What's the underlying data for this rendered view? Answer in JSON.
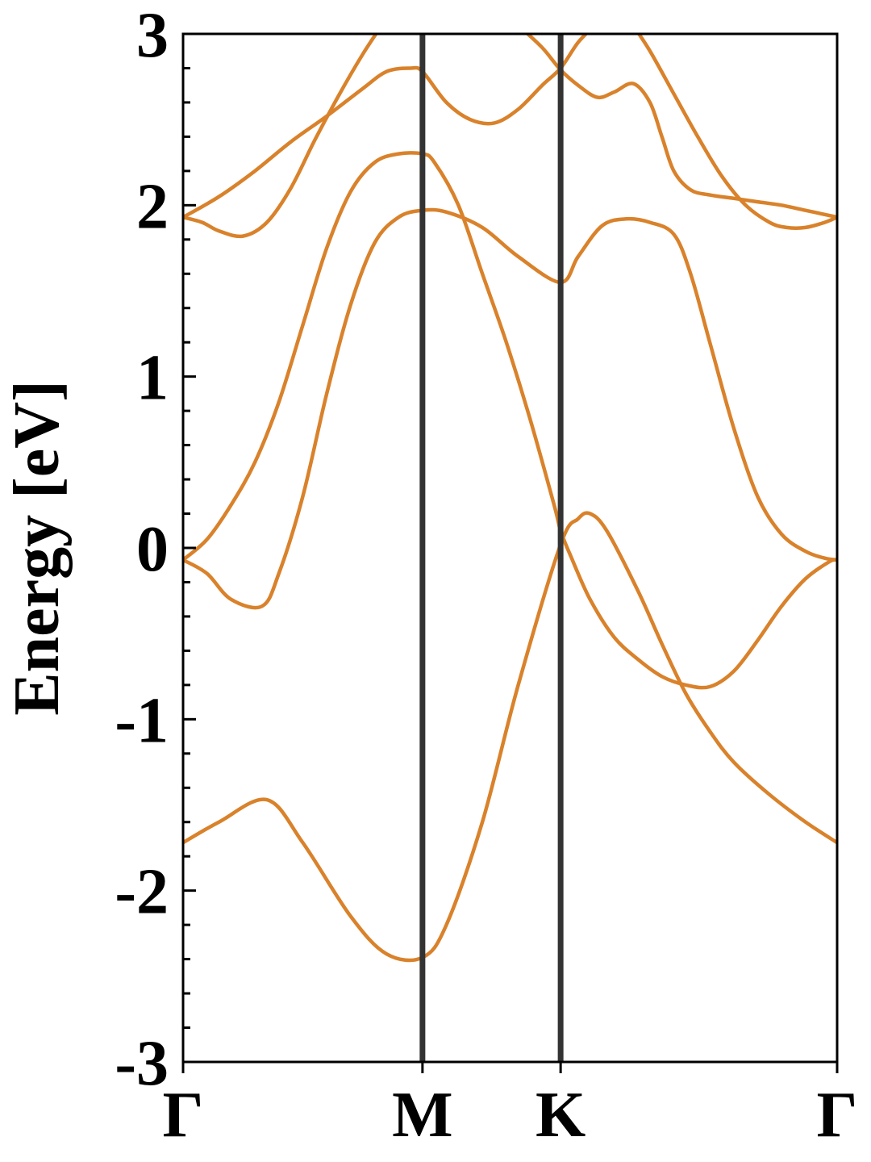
{
  "chart_data": {
    "type": "line",
    "title": "",
    "xlabel": "",
    "ylabel": "Energy [eV]",
    "ylim": [
      -3,
      3
    ],
    "grid": false,
    "legend": "none",
    "y_ticks": [
      "-3",
      "-2",
      "-1",
      "0",
      "1",
      "2",
      "3"
    ],
    "k_points": [
      {
        "label": "Γ",
        "position": 0.0
      },
      {
        "label": "M",
        "position": 1.0
      },
      {
        "label": "K",
        "position": 1.577
      },
      {
        "label": "Γ",
        "position": 2.732
      }
    ],
    "band_color": "#d9822b",
    "symmetry_line_color": "#333333",
    "series": [
      {
        "points": [
          [
            0.0,
            -1.72
          ],
          [
            0.15,
            -1.6
          ],
          [
            0.35,
            -1.47
          ],
          [
            0.5,
            -1.72
          ],
          [
            0.7,
            -2.15
          ],
          [
            0.85,
            -2.37
          ],
          [
            1.0,
            -2.39
          ],
          [
            1.1,
            -2.2
          ],
          [
            1.25,
            -1.6
          ],
          [
            1.4,
            -0.8
          ],
          [
            1.577,
            0.02
          ],
          [
            1.65,
            0.17
          ],
          [
            1.7,
            0.2
          ],
          [
            1.77,
            0.1
          ],
          [
            1.9,
            -0.25
          ],
          [
            2.0,
            -0.56
          ],
          [
            2.1,
            -0.85
          ],
          [
            2.2,
            -1.07
          ],
          [
            2.3,
            -1.25
          ],
          [
            2.45,
            -1.44
          ],
          [
            2.6,
            -1.6
          ],
          [
            2.732,
            -1.72
          ]
        ]
      },
      {
        "points": [
          [
            0.0,
            -0.07
          ],
          [
            0.1,
            -0.15
          ],
          [
            0.2,
            -0.3
          ],
          [
            0.33,
            -0.34
          ],
          [
            0.4,
            -0.15
          ],
          [
            0.5,
            0.3
          ],
          [
            0.6,
            0.9
          ],
          [
            0.7,
            1.42
          ],
          [
            0.8,
            1.78
          ],
          [
            0.9,
            1.93
          ],
          [
            1.0,
            1.97
          ],
          [
            1.1,
            1.96
          ],
          [
            1.25,
            1.87
          ],
          [
            1.4,
            1.7
          ],
          [
            1.577,
            1.55
          ],
          [
            1.65,
            1.7
          ],
          [
            1.75,
            1.88
          ],
          [
            1.85,
            1.92
          ],
          [
            1.95,
            1.9
          ],
          [
            2.05,
            1.83
          ],
          [
            2.12,
            1.6
          ],
          [
            2.2,
            1.2
          ],
          [
            2.3,
            0.7
          ],
          [
            2.4,
            0.3
          ],
          [
            2.5,
            0.08
          ],
          [
            2.6,
            -0.02
          ],
          [
            2.68,
            -0.06
          ],
          [
            2.732,
            -0.07
          ]
        ]
      },
      {
        "points": [
          [
            0.0,
            -0.07
          ],
          [
            0.1,
            0.05
          ],
          [
            0.2,
            0.25
          ],
          [
            0.3,
            0.5
          ],
          [
            0.4,
            0.85
          ],
          [
            0.5,
            1.3
          ],
          [
            0.6,
            1.75
          ],
          [
            0.7,
            2.08
          ],
          [
            0.8,
            2.25
          ],
          [
            0.9,
            2.3
          ],
          [
            1.0,
            2.3
          ],
          [
            1.05,
            2.25
          ],
          [
            1.15,
            2.0
          ],
          [
            1.25,
            1.6
          ],
          [
            1.35,
            1.2
          ],
          [
            1.45,
            0.75
          ],
          [
            1.55,
            0.25
          ],
          [
            1.577,
            0.1
          ],
          [
            1.62,
            -0.05
          ],
          [
            1.7,
            -0.3
          ],
          [
            1.8,
            -0.52
          ],
          [
            1.9,
            -0.65
          ],
          [
            2.0,
            -0.75
          ],
          [
            2.1,
            -0.8
          ],
          [
            2.2,
            -0.81
          ],
          [
            2.3,
            -0.72
          ],
          [
            2.4,
            -0.54
          ],
          [
            2.5,
            -0.34
          ],
          [
            2.6,
            -0.18
          ],
          [
            2.7,
            -0.08
          ],
          [
            2.732,
            -0.07
          ]
        ]
      },
      {
        "points": [
          [
            0.0,
            1.93
          ],
          [
            0.08,
            1.9
          ],
          [
            0.15,
            1.85
          ],
          [
            0.25,
            1.82
          ],
          [
            0.35,
            1.9
          ],
          [
            0.45,
            2.1
          ],
          [
            0.55,
            2.38
          ],
          [
            0.65,
            2.64
          ],
          [
            0.75,
            2.88
          ],
          [
            0.83,
            3.05
          ]
        ]
      },
      {
        "points": [
          [
            0.0,
            1.93
          ],
          [
            0.15,
            2.05
          ],
          [
            0.3,
            2.2
          ],
          [
            0.45,
            2.37
          ],
          [
            0.6,
            2.52
          ],
          [
            0.75,
            2.68
          ],
          [
            0.85,
            2.78
          ],
          [
            0.95,
            2.8
          ],
          [
            1.0,
            2.78
          ],
          [
            1.1,
            2.6
          ],
          [
            1.2,
            2.5
          ],
          [
            1.3,
            2.48
          ],
          [
            1.4,
            2.56
          ],
          [
            1.5,
            2.7
          ],
          [
            1.577,
            2.8
          ],
          [
            1.65,
            2.95
          ],
          [
            1.72,
            3.05
          ]
        ]
      },
      {
        "points": [
          [
            1.4,
            3.05
          ],
          [
            1.5,
            2.92
          ],
          [
            1.577,
            2.79
          ],
          [
            1.65,
            2.7
          ],
          [
            1.73,
            2.63
          ],
          [
            1.8,
            2.66
          ],
          [
            1.88,
            2.71
          ],
          [
            1.95,
            2.6
          ],
          [
            2.0,
            2.4
          ],
          [
            2.05,
            2.2
          ],
          [
            2.12,
            2.09
          ],
          [
            2.2,
            2.06
          ],
          [
            2.3,
            2.04
          ],
          [
            2.4,
            2.02
          ],
          [
            2.5,
            2.0
          ],
          [
            2.6,
            1.97
          ],
          [
            2.7,
            1.94
          ],
          [
            2.732,
            1.93
          ]
        ]
      },
      {
        "points": [
          [
            1.88,
            3.05
          ],
          [
            1.95,
            2.9
          ],
          [
            2.05,
            2.65
          ],
          [
            2.15,
            2.4
          ],
          [
            2.25,
            2.17
          ],
          [
            2.35,
            2.0
          ],
          [
            2.45,
            1.9
          ],
          [
            2.52,
            1.87
          ],
          [
            2.6,
            1.87
          ],
          [
            2.68,
            1.9
          ],
          [
            2.732,
            1.93
          ]
        ]
      }
    ]
  }
}
